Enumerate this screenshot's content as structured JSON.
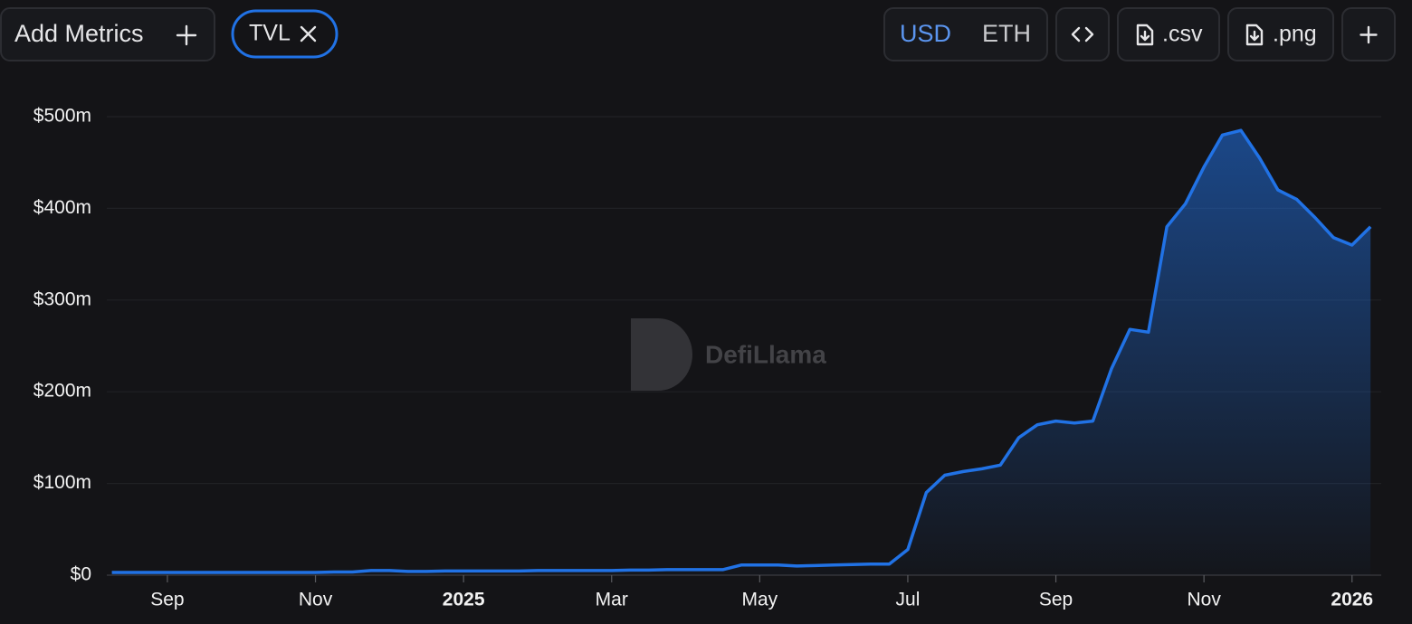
{
  "ui": {
    "add_metrics": "Add Metrics",
    "metric": "TVL",
    "currency_options": [
      "USD",
      "ETH"
    ],
    "selected_currency": "USD",
    "csv": ".csv",
    "png": ".png"
  },
  "chart_data": {
    "type": "area",
    "watermark": "DefiLlama",
    "color": "#2172e5",
    "categories": [
      null,
      null,
      null,
      "Sep",
      null,
      null,
      null,
      null,
      null,
      null,
      null,
      "Nov",
      null,
      null,
      null,
      null,
      null,
      null,
      null,
      "2025",
      null,
      null,
      null,
      null,
      null,
      null,
      null,
      "Mar",
      null,
      null,
      null,
      null,
      null,
      null,
      null,
      "May",
      null,
      null,
      null,
      null,
      null,
      null,
      null,
      "Jul",
      null,
      null,
      null,
      null,
      null,
      null,
      null,
      "Sep",
      null,
      null,
      null,
      null,
      null,
      null,
      null,
      "Nov",
      null,
      null,
      null,
      null,
      null,
      null,
      null,
      "2026",
      null
    ],
    "values": [
      3,
      3,
      3,
      3,
      3,
      3,
      3,
      3,
      3,
      3,
      3,
      3,
      3.5,
      3.5,
      5,
      5,
      4,
      4,
      4.5,
      4.5,
      4.5,
      4.5,
      4.5,
      5,
      5,
      5,
      5,
      5,
      5.5,
      5.5,
      6,
      6,
      6,
      6,
      11,
      11,
      11,
      10,
      10.5,
      11,
      11.5,
      12,
      12,
      28,
      90,
      109,
      113,
      116,
      120,
      150,
      164,
      168,
      166,
      168,
      225,
      268,
      265,
      380,
      405,
      445,
      480,
      485,
      455,
      420,
      410,
      390,
      368,
      360,
      380
    ],
    "ylim": [
      0,
      500
    ],
    "yticks": [
      {
        "value": 0,
        "label": "$0"
      },
      {
        "value": 100,
        "label": "$100m"
      },
      {
        "value": 200,
        "label": "$200m"
      },
      {
        "value": 300,
        "label": "$300m"
      },
      {
        "value": 400,
        "label": "$400m"
      },
      {
        "value": 500,
        "label": "$500m"
      }
    ],
    "grid": true
  }
}
